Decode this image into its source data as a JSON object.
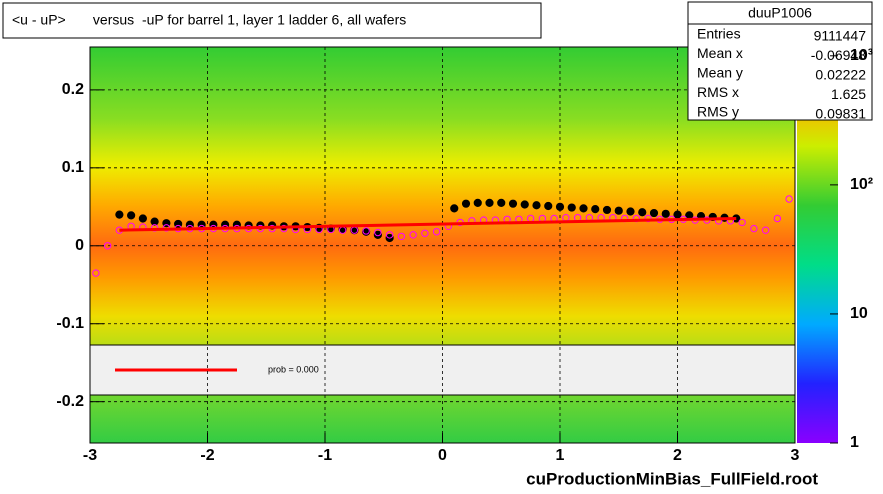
{
  "chart_data": {
    "type": "scatter",
    "title": "<u - uP>       versus  -uP for barrel 1, layer 1 ladder 6, all wafers",
    "xlabel": "cuProductionMinBias_FullField.root",
    "annotation": "prob = 0.000",
    "xlim": [
      -3,
      3
    ],
    "ylim": [
      -0.253,
      0.255
    ],
    "xticks": [
      -3,
      -2,
      -1,
      0,
      1,
      2,
      3
    ],
    "yticks": [
      -0.2,
      -0.1,
      0,
      0.1,
      0.2
    ],
    "grid": true,
    "series": [
      {
        "color": "#000000",
        "marker": "filled",
        "x": [
          -2.75,
          -2.65,
          -2.55,
          -2.45,
          -2.35,
          -2.25,
          -2.15,
          -2.05,
          -1.95,
          -1.85,
          -1.75,
          -1.65,
          -1.55,
          -1.45,
          -1.35,
          -1.25,
          -1.15,
          -1.05,
          -0.95,
          -0.85,
          -0.75,
          -0.65,
          -0.55,
          -0.45,
          0.1,
          0.2,
          0.3,
          0.4,
          0.5,
          0.6,
          0.7,
          0.8,
          0.9,
          1.0,
          1.1,
          1.2,
          1.3,
          1.4,
          1.5,
          1.6,
          1.7,
          1.8,
          1.9,
          2.0,
          2.1,
          2.2,
          2.3,
          2.4,
          2.5
        ],
        "values": [
          0.04,
          0.039,
          0.035,
          0.031,
          0.029,
          0.028,
          0.027,
          0.027,
          0.027,
          0.027,
          0.027,
          0.026,
          0.026,
          0.026,
          0.025,
          0.025,
          0.024,
          0.023,
          0.022,
          0.021,
          0.02,
          0.018,
          0.014,
          0.01,
          0.048,
          0.054,
          0.055,
          0.055,
          0.055,
          0.054,
          0.053,
          0.052,
          0.051,
          0.05,
          0.049,
          0.048,
          0.047,
          0.046,
          0.045,
          0.044,
          0.043,
          0.042,
          0.041,
          0.04,
          0.039,
          0.038,
          0.037,
          0.036,
          0.035
        ]
      },
      {
        "color": "#ff00ff",
        "marker": "open",
        "x": [
          -2.95,
          -2.85,
          -2.75,
          -2.65,
          -2.55,
          -2.45,
          -2.35,
          -2.25,
          -2.15,
          -2.05,
          -1.95,
          -1.85,
          -1.75,
          -1.65,
          -1.55,
          -1.45,
          -1.35,
          -1.25,
          -1.15,
          -1.05,
          -0.95,
          -0.85,
          -0.75,
          -0.65,
          -0.55,
          -0.45,
          -0.35,
          -0.25,
          -0.15,
          -0.05,
          0.05,
          0.15,
          0.25,
          0.35,
          0.45,
          0.55,
          0.65,
          0.75,
          0.85,
          0.95,
          1.05,
          1.15,
          1.25,
          1.35,
          1.45,
          1.55,
          1.65,
          1.75,
          1.85,
          1.95,
          2.05,
          2.15,
          2.25,
          2.35,
          2.45,
          2.55,
          2.65,
          2.75,
          2.85,
          2.95
        ],
        "values": [
          -0.035,
          0.0,
          0.02,
          0.025,
          0.024,
          0.023,
          0.023,
          0.022,
          0.022,
          0.022,
          0.022,
          0.022,
          0.022,
          0.022,
          0.022,
          0.022,
          0.022,
          0.021,
          0.021,
          0.021,
          0.021,
          0.02,
          0.02,
          0.019,
          0.017,
          0.014,
          0.012,
          0.014,
          0.016,
          0.018,
          0.025,
          0.03,
          0.032,
          0.033,
          0.033,
          0.034,
          0.034,
          0.035,
          0.035,
          0.035,
          0.036,
          0.036,
          0.036,
          0.036,
          0.036,
          0.035,
          0.035,
          0.035,
          0.034,
          0.034,
          0.034,
          0.033,
          0.033,
          0.032,
          0.032,
          0.03,
          0.022,
          0.02,
          0.035,
          0.06
        ]
      },
      {
        "color": "#ff0000",
        "marker": "line",
        "x": [
          -2.75,
          2.5
        ],
        "values": [
          0.02,
          0.035
        ]
      }
    ],
    "colorbar": {
      "log": true,
      "zlim": [
        1,
        1170
      ],
      "zticks": [
        1,
        10,
        {
          "value": 100,
          "label": "10²"
        },
        {
          "value": 1000,
          "label": "10³"
        }
      ]
    },
    "stats": {
      "title": "duuP1006",
      "rows": [
        [
          "Entries",
          "9111447"
        ],
        [
          "Mean x",
          "-0.06948"
        ],
        [
          "Mean y",
          "0.02222"
        ],
        [
          "RMS x",
          "1.625"
        ],
        [
          "RMS y",
          "0.09831"
        ]
      ]
    }
  }
}
